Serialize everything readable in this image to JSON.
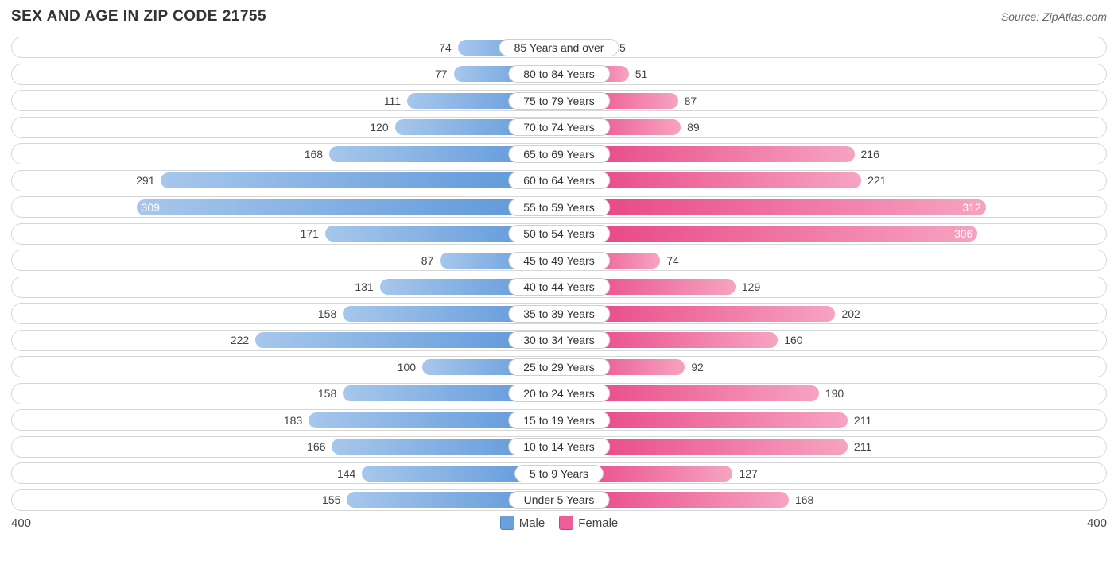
{
  "title": "SEX AND AGE IN ZIP CODE 21755",
  "source": "Source: ZipAtlas.com",
  "chart": {
    "type": "diverging-bar",
    "axis_max": 400,
    "male_color_start": "#a7c7ec",
    "male_color_end": "#5a95d9",
    "female_color_start": "#e73f80",
    "female_color_end": "#f7a3c1",
    "row_border_color": "#d6d6d6",
    "background_color": "#ffffff",
    "label_fontsize": 14,
    "title_fontsize": 19,
    "inside_label_threshold": 300,
    "rows": [
      {
        "label": "85 Years and over",
        "male": 74,
        "female": 35
      },
      {
        "label": "80 to 84 Years",
        "male": 77,
        "female": 51
      },
      {
        "label": "75 to 79 Years",
        "male": 111,
        "female": 87
      },
      {
        "label": "70 to 74 Years",
        "male": 120,
        "female": 89
      },
      {
        "label": "65 to 69 Years",
        "male": 168,
        "female": 216
      },
      {
        "label": "60 to 64 Years",
        "male": 291,
        "female": 221
      },
      {
        "label": "55 to 59 Years",
        "male": 309,
        "female": 312
      },
      {
        "label": "50 to 54 Years",
        "male": 171,
        "female": 306
      },
      {
        "label": "45 to 49 Years",
        "male": 87,
        "female": 74
      },
      {
        "label": "40 to 44 Years",
        "male": 131,
        "female": 129
      },
      {
        "label": "35 to 39 Years",
        "male": 158,
        "female": 202
      },
      {
        "label": "30 to 34 Years",
        "male": 222,
        "female": 160
      },
      {
        "label": "25 to 29 Years",
        "male": 100,
        "female": 92
      },
      {
        "label": "20 to 24 Years",
        "male": 158,
        "female": 190
      },
      {
        "label": "15 to 19 Years",
        "male": 183,
        "female": 211
      },
      {
        "label": "10 to 14 Years",
        "male": 166,
        "female": 211
      },
      {
        "label": "5 to 9 Years",
        "male": 144,
        "female": 127
      },
      {
        "label": "Under 5 Years",
        "male": 155,
        "female": 168
      }
    ]
  },
  "legend": {
    "male": "Male",
    "female": "Female"
  },
  "axis": {
    "left": "400",
    "right": "400"
  }
}
